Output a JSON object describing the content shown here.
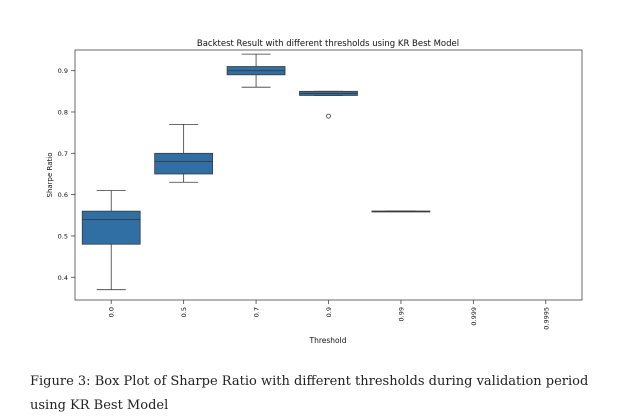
{
  "chart_data": {
    "type": "box",
    "title": "Backtest Result with different thresholds using KR Best Model",
    "xlabel": "Threshold",
    "ylabel": "Sharpe Ratio",
    "ylim": [
      0.345,
      0.95
    ],
    "yticks": [
      0.4,
      0.5,
      0.6,
      0.7,
      0.8,
      0.9
    ],
    "ytick_labels": [
      "0.4",
      "0.5",
      "0.6",
      "0.7",
      "0.8",
      "0.9"
    ],
    "categories": [
      "0.0",
      "0.5",
      "0.7",
      "0.9",
      "0.99",
      "0.999",
      "0.9995"
    ],
    "box_color": "#2f6fa3",
    "boxes": [
      {
        "category": "0.0",
        "min": 0.37,
        "q1": 0.48,
        "median": 0.54,
        "q3": 0.56,
        "max": 0.61,
        "outliers": []
      },
      {
        "category": "0.5",
        "min": 0.63,
        "q1": 0.65,
        "median": 0.68,
        "q3": 0.7,
        "max": 0.77,
        "outliers": []
      },
      {
        "category": "0.7",
        "min": 0.86,
        "q1": 0.89,
        "median": 0.9,
        "q3": 0.91,
        "max": 0.94,
        "outliers": []
      },
      {
        "category": "0.9",
        "min": 0.84,
        "q1": 0.84,
        "median": 0.845,
        "q3": 0.85,
        "max": 0.85,
        "outliers": [
          0.79
        ]
      },
      {
        "category": "0.99",
        "min": 0.56,
        "q1": 0.56,
        "median": 0.56,
        "q3": 0.56,
        "max": 0.56,
        "outliers": []
      },
      {
        "category": "0.999",
        "empty": true
      },
      {
        "category": "0.9995",
        "empty": true
      }
    ]
  },
  "caption": {
    "text": "Figure 3: Box Plot of Sharpe Ratio with different thresholds during validation period using KR Best Model"
  }
}
